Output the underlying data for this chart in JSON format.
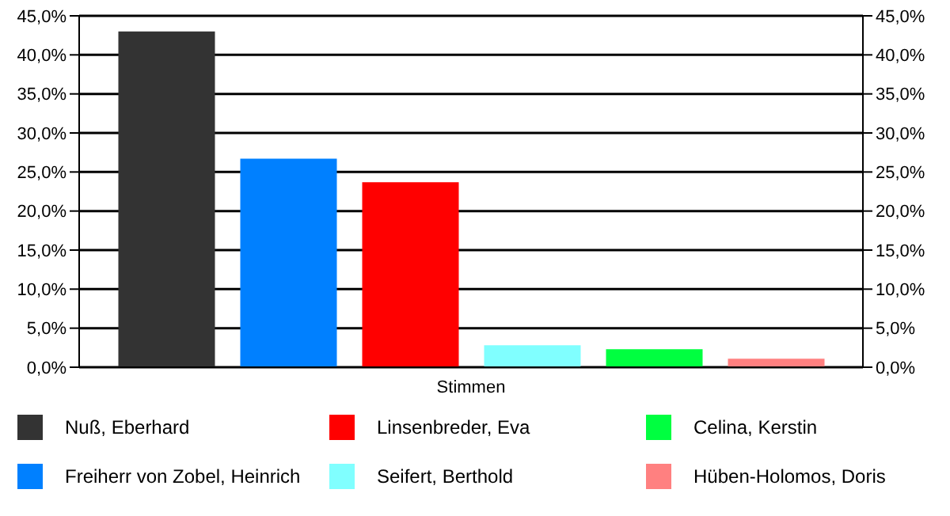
{
  "chart_data": {
    "type": "bar",
    "categories": [
      "Stimmen"
    ],
    "series": [
      {
        "name": "Nuß, Eberhard",
        "color": "#333333",
        "values": [
          43.0
        ]
      },
      {
        "name": "Freiherr von Zobel, Heinrich",
        "color": "#0080ff",
        "values": [
          26.7
        ]
      },
      {
        "name": "Linsenbreder, Eva",
        "color": "#ff0000",
        "values": [
          23.7
        ]
      },
      {
        "name": "Seifert, Berthold",
        "color": "#80ffff",
        "values": [
          2.8
        ]
      },
      {
        "name": "Celina, Kerstin",
        "color": "#00ff40",
        "values": [
          2.3
        ]
      },
      {
        "name": "Hüben-Holomos, Doris",
        "color": "#ff8080",
        "values": [
          1.1
        ]
      }
    ],
    "ylim": [
      0,
      45
    ],
    "yticks": [
      {
        "value": 0,
        "label": "0,0%"
      },
      {
        "value": 5,
        "label": "5,0%"
      },
      {
        "value": 10,
        "label": "10,0%"
      },
      {
        "value": 15,
        "label": "15,0%"
      },
      {
        "value": 20,
        "label": "20,0%"
      },
      {
        "value": 25,
        "label": "25,0%"
      },
      {
        "value": 30,
        "label": "30,0%"
      },
      {
        "value": 35,
        "label": "35,0%"
      },
      {
        "value": 40,
        "label": "40,0%"
      },
      {
        "value": 45,
        "label": "45,0%"
      }
    ],
    "grid": "y",
    "legend": "bottom"
  }
}
